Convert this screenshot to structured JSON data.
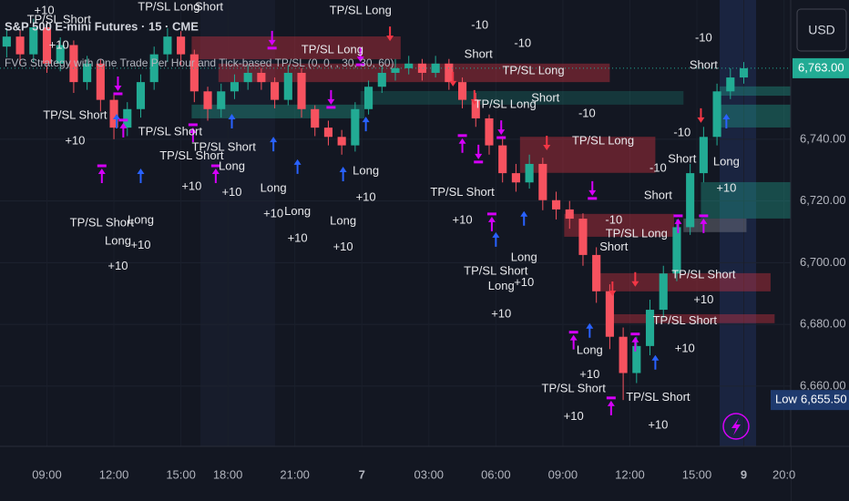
{
  "chart_data": {
    "type": "candlestick",
    "title": "S&P 500 E-mini Futures · 15 · CME",
    "subtitle": "FVG Strategy with One Trade Per Hour and Tick-based TP/SL (0, 0, , 30, 30, 60)",
    "currency": "USD",
    "xlim": [
      -0.5,
      58.5
    ],
    "ylim": [
      6640.5,
      6785.1
    ],
    "xticks": [
      {
        "value": 3,
        "label": "09:00"
      },
      {
        "value": 8,
        "label": "12:00"
      },
      {
        "value": 13,
        "label": "15:00"
      },
      {
        "value": 16.5,
        "label": "18:00"
      },
      {
        "value": 21.5,
        "label": "21:00"
      },
      {
        "value": 26.5,
        "label": "7"
      },
      {
        "value": 31.5,
        "label": "03:00"
      },
      {
        "value": 36.5,
        "label": "06:00"
      },
      {
        "value": 41.5,
        "label": "09:00"
      },
      {
        "value": 46.5,
        "label": "12:00"
      },
      {
        "value": 51.5,
        "label": "15:00"
      },
      {
        "value": 55,
        "label": "9"
      },
      {
        "value": 58,
        "label": "20:0"
      }
    ],
    "yticks": [
      {
        "value": 6660,
        "label": "6,660.00"
      },
      {
        "value": 6680,
        "label": "6,680.00"
      },
      {
        "value": 6700,
        "label": "6,700.00"
      },
      {
        "value": 6720,
        "label": "6,720.00"
      },
      {
        "value": 6740,
        "label": "6,740.00"
      }
    ],
    "up_color": "#22ab94",
    "down_color": "#f7525f",
    "x": [
      0,
      1,
      2,
      3,
      4,
      5,
      6,
      7,
      8,
      9,
      10,
      11,
      12,
      13,
      14,
      15,
      16,
      17,
      18,
      19,
      20,
      21,
      22,
      23,
      24,
      25,
      26,
      27,
      28,
      29,
      30,
      31,
      32,
      33,
      34,
      35,
      36,
      37,
      38,
      39,
      40,
      41,
      42,
      43,
      44,
      45,
      46,
      47,
      48,
      49,
      50,
      51,
      52,
      53,
      54,
      55
    ],
    "series": [
      {
        "open": [
          6770,
          6773.25,
          6767.5,
          6776.25,
          6764.5,
          6770.5,
          6758.5,
          6764.5,
          6752.75,
          6743.75,
          6749.75,
          6758.5,
          6767.5,
          6773.25,
          6767.5,
          6755.5,
          6749.75,
          6755.5,
          6758.5,
          6761.5,
          6758.5,
          6752.75,
          6761.5,
          6749.75,
          6743.75,
          6740.75,
          6738,
          6749.75,
          6757,
          6761.5,
          6763,
          6764.5,
          6761.5,
          6764.5,
          6758.5,
          6752.75,
          6746.75,
          6738,
          6729,
          6726,
          6732,
          6720.25,
          6717.25,
          6714.25,
          6702.5,
          6690.75,
          6676,
          6664.25,
          6673,
          6684.75,
          6696.5,
          6711.5,
          6729,
          6740.75,
          6755.5,
          6760
        ],
        "high": [
          6776,
          6775.5,
          6779,
          6778,
          6773,
          6772,
          6767,
          6766,
          6755,
          6752,
          6761,
          6770,
          6776,
          6775,
          6769,
          6757,
          6758,
          6761,
          6764,
          6763,
          6760,
          6764,
          6763,
          6751,
          6746,
          6743,
          6752,
          6759,
          6764,
          6766,
          6767,
          6766,
          6767,
          6766,
          6760,
          6755,
          6748,
          6741,
          6732,
          6735,
          6734,
          6723,
          6720,
          6716,
          6705,
          6693,
          6679,
          6676,
          6688,
          6699,
          6714,
          6732,
          6744,
          6758,
          6763,
          6765
        ],
        "low": [
          6766.5,
          6764,
          6765,
          6761.5,
          6762,
          6755,
          6756,
          6749,
          6740,
          6741,
          6747,
          6756,
          6765,
          6764,
          6752,
          6746,
          6747,
          6753,
          6756,
          6756,
          6750,
          6751,
          6747,
          6741,
          6738,
          6735,
          6736,
          6748,
          6755,
          6759,
          6761,
          6759,
          6760,
          6756,
          6750,
          6744,
          6735,
          6726,
          6723,
          6724,
          6717,
          6714,
          6711,
          6699,
          6687,
          6672,
          6655.5,
          6661,
          6670,
          6682,
          6694,
          6709,
          6726,
          6738,
          6753,
          6758
        ],
        "close": [
          6773.25,
          6767.5,
          6776.25,
          6764.5,
          6770.5,
          6758.5,
          6764.5,
          6752.75,
          6743.75,
          6749.75,
          6758.5,
          6767.5,
          6773.25,
          6767.5,
          6755.5,
          6749.75,
          6755.5,
          6758.5,
          6761.5,
          6758.5,
          6752.75,
          6761.5,
          6749.75,
          6743.75,
          6740.75,
          6738,
          6749.75,
          6757,
          6761.5,
          6763,
          6764.5,
          6761.5,
          6764.5,
          6758.5,
          6752.75,
          6746.75,
          6738,
          6729,
          6726,
          6732,
          6720.25,
          6717.25,
          6714.25,
          6702.5,
          6690.75,
          6676,
          6664.25,
          6673,
          6684.75,
          6696.5,
          6711.5,
          6729,
          6740.75,
          6755.5,
          6760,
          6763
        ]
      }
    ],
    "last": {
      "value": 6763,
      "label": "6,763.00",
      "color": "#22ab94"
    },
    "low": {
      "label": "Low",
      "value": 6655.5,
      "value_label": "6,655.50"
    },
    "zones": [
      {
        "x": [
          13.8,
          29.4
        ],
        "y": [
          6765.9,
          6773.3
        ],
        "color": "rgba(242,54,69,0.35)"
      },
      {
        "x": [
          15.8,
          45.0
        ],
        "y": [
          6758.5,
          6764.5
        ],
        "color": "rgba(242,54,69,0.35)"
      },
      {
        "x": [
          13.8,
          26.7
        ],
        "y": [
          6746.75,
          6751.2
        ],
        "color": "rgba(34,171,148,0.35)"
      },
      {
        "x": [
          26.4,
          50.5
        ],
        "y": [
          6751.2,
          6755.6
        ],
        "color": "rgba(34,171,148,0.22)"
      },
      {
        "x": [
          53.2,
          58.5
        ],
        "y": [
          6754.1,
          6757.1
        ],
        "color": "rgba(34,171,148,0.35)"
      },
      {
        "x": [
          53.2,
          58.5
        ],
        "y": [
          6743.8,
          6751.2
        ],
        "color": "rgba(34,171,148,0.35)"
      },
      {
        "x": [
          51.8,
          58.5
        ],
        "y": [
          6714.3,
          6726.1
        ],
        "color": "rgba(34,171,148,0.35)"
      },
      {
        "x": [
          38.3,
          48.4
        ],
        "y": [
          6729.1,
          6740.8
        ],
        "color": "rgba(242,54,69,0.35)"
      },
      {
        "x": [
          41.6,
          49.8
        ],
        "y": [
          6708.4,
          6715.8
        ],
        "color": "rgba(242,54,69,0.35)"
      },
      {
        "x": [
          43.7,
          57
        ],
        "y": [
          6690.7,
          6696.6
        ],
        "color": "rgba(242,54,69,0.35)"
      },
      {
        "x": [
          45.0,
          57.3
        ],
        "y": [
          6680.4,
          6683.3
        ],
        "color": "rgba(242,54,69,0.35)"
      },
      {
        "x": [
          50.5,
          55.2
        ],
        "y": [
          6709.9,
          6714.3
        ],
        "color": "rgba(120,123,134,0.45)"
      }
    ],
    "markers": [
      {
        "x": 8.2,
        "y": 6748.2,
        "color": "#2962ff",
        "arrow": "up"
      },
      {
        "x": 10,
        "y": 6730.5,
        "color": "#2962ff",
        "arrow": "up"
      },
      {
        "x": 16.8,
        "y": 6748.2,
        "color": "#2962ff",
        "arrow": "up"
      },
      {
        "x": 19.9,
        "y": 6740.8,
        "color": "#2962ff",
        "arrow": "up"
      },
      {
        "x": 21.7,
        "y": 6733.5,
        "color": "#2962ff",
        "arrow": "up"
      },
      {
        "x": 25.1,
        "y": 6731.1,
        "color": "#2962ff",
        "arrow": "up"
      },
      {
        "x": 26.8,
        "y": 6747.3,
        "color": "#2962ff",
        "arrow": "up"
      },
      {
        "x": 36.5,
        "y": 6709.9,
        "color": "#2962ff",
        "arrow": "up"
      },
      {
        "x": 38.6,
        "y": 6716.7,
        "color": "#2962ff",
        "arrow": "up"
      },
      {
        "x": 43.5,
        "y": 6680.4,
        "color": "#2962ff",
        "arrow": "up"
      },
      {
        "x": 48.4,
        "y": 6670.1,
        "color": "#2962ff",
        "arrow": "up"
      },
      {
        "x": 53.7,
        "y": 6748.2,
        "color": "#2962ff",
        "arrow": "up"
      },
      {
        "x": 28.6,
        "y": 6771.8,
        "color": "#f23645",
        "arrow": "down"
      },
      {
        "x": 33.3,
        "y": 6757.1,
        "color": "#f23645",
        "arrow": "down"
      },
      {
        "x": 34.9,
        "y": 6751.2,
        "color": "#f23645",
        "arrow": "down"
      },
      {
        "x": 40.3,
        "y": 6736.4,
        "color": "#f23645",
        "arrow": "down"
      },
      {
        "x": 45.2,
        "y": 6689.2,
        "color": "#f23645",
        "arrow": "down"
      },
      {
        "x": 46.9,
        "y": 6692.2,
        "color": "#f23645",
        "arrow": "down"
      },
      {
        "x": 51.8,
        "y": 6745.3,
        "color": "#f23645",
        "arrow": "down"
      },
      {
        "x": 7.1,
        "y": 6730.5,
        "color": "#d500f9",
        "arrow": "up"
      },
      {
        "x": 8.7,
        "y": 6745.3,
        "color": "#d500f9",
        "arrow": "up"
      },
      {
        "x": 13.9,
        "y": 6743.8,
        "color": "#d500f9",
        "arrow": "up"
      },
      {
        "x": 15.6,
        "y": 6730.5,
        "color": "#d500f9",
        "arrow": "up"
      },
      {
        "x": 34,
        "y": 6740.3,
        "color": "#d500f9",
        "arrow": "up"
      },
      {
        "x": 36.2,
        "y": 6714.9,
        "color": "#d500f9",
        "arrow": "up"
      },
      {
        "x": 42.3,
        "y": 6676.6,
        "color": "#d500f9",
        "arrow": "up"
      },
      {
        "x": 45.1,
        "y": 6655.3,
        "color": "#d500f9",
        "arrow": "up"
      },
      {
        "x": 46.9,
        "y": 6676,
        "color": "#d500f9",
        "arrow": "up"
      },
      {
        "x": 50.1,
        "y": 6714.3,
        "color": "#d500f9",
        "arrow": "up"
      },
      {
        "x": 52,
        "y": 6714.3,
        "color": "#d500f9",
        "arrow": "up"
      },
      {
        "x": 8.3,
        "y": 6755.6,
        "color": "#d500f9",
        "arrow": "down"
      },
      {
        "x": 19.8,
        "y": 6770.4,
        "color": "#d500f9",
        "arrow": "down"
      },
      {
        "x": 24.2,
        "y": 6751.2,
        "color": "#d500f9",
        "arrow": "down"
      },
      {
        "x": 26.4,
        "y": 6765,
        "color": "#d500f9",
        "arrow": "down"
      },
      {
        "x": 35.2,
        "y": 6733.5,
        "color": "#d500f9",
        "arrow": "down"
      },
      {
        "x": 36.9,
        "y": 6741.4,
        "color": "#d500f9",
        "arrow": "down"
      },
      {
        "x": 43.7,
        "y": 6721.7,
        "color": "#d500f9",
        "arrow": "down"
      }
    ],
    "annotations": [
      {
        "text": "+10",
        "x": 2.8,
        "y": 6781.5
      },
      {
        "text": "TP/SL Short",
        "x": 3.9,
        "y": 6778.6
      },
      {
        "text": "+10",
        "x": 3.9,
        "y": 6770.4
      },
      {
        "text": "TP/SL Long",
        "x": 12.1,
        "y": 6782.7
      },
      {
        "text": "Short",
        "x": 15.1,
        "y": 6782.7
      },
      {
        "text": "TP/SL Long",
        "x": 26.4,
        "y": 6781.5
      },
      {
        "text": "-10",
        "x": 35.3,
        "y": 6776.8
      },
      {
        "text": "Short",
        "x": 35.2,
        "y": 6767.4
      },
      {
        "text": "-10",
        "x": 38.5,
        "y": 6770.9
      },
      {
        "text": "TP/SL Long",
        "x": 24.3,
        "y": 6768.9
      },
      {
        "text": "TP/SL Long",
        "x": 39.3,
        "y": 6762.1
      },
      {
        "text": "Short",
        "x": 40.2,
        "y": 6753.2
      },
      {
        "text": "TP/SL Long",
        "x": 37.2,
        "y": 6751.2
      },
      {
        "text": "-10",
        "x": 43.3,
        "y": 6748.2
      },
      {
        "text": "TP/SL Long",
        "x": 44.5,
        "y": 6739.4
      },
      {
        "text": "-10",
        "x": 52,
        "y": 6772.7
      },
      {
        "text": "Short",
        "x": 52,
        "y": 6763.9
      },
      {
        "text": "TP/SL Short",
        "x": 5.1,
        "y": 6747.6
      },
      {
        "text": "+10",
        "x": 5.1,
        "y": 6739.4
      },
      {
        "text": "TP/SL Short",
        "x": 12.2,
        "y": 6742.3
      },
      {
        "text": "TP/SL Short",
        "x": 13.8,
        "y": 6734.4
      },
      {
        "text": "TP/SL Short",
        "x": 16.2,
        "y": 6737.3
      },
      {
        "text": "+10",
        "x": 13.8,
        "y": 6724.6
      },
      {
        "text": "+10",
        "x": 16.8,
        "y": 6722.6
      },
      {
        "text": "Long",
        "x": 16.8,
        "y": 6731.1
      },
      {
        "text": "Long",
        "x": 19.9,
        "y": 6724
      },
      {
        "text": "+10",
        "x": 19.9,
        "y": 6715.8
      },
      {
        "text": "Long",
        "x": 21.7,
        "y": 6716.4
      },
      {
        "text": "+10",
        "x": 21.7,
        "y": 6707.8
      },
      {
        "text": "Long",
        "x": 25.1,
        "y": 6713.4
      },
      {
        "text": "+10",
        "x": 25.1,
        "y": 6704.9
      },
      {
        "text": "Long",
        "x": 26.8,
        "y": 6729.6
      },
      {
        "text": "+10",
        "x": 26.8,
        "y": 6721.1
      },
      {
        "text": "TP/SL Short",
        "x": 7.1,
        "y": 6712.8
      },
      {
        "text": "Long",
        "x": 8.3,
        "y": 6706.9
      },
      {
        "text": "+10",
        "x": 8.3,
        "y": 6698.7
      },
      {
        "text": "Long",
        "x": 10,
        "y": 6713.7
      },
      {
        "text": "+10",
        "x": 10,
        "y": 6705.5
      },
      {
        "text": "TP/SL Short",
        "x": 34,
        "y": 6722.6
      },
      {
        "text": "+10",
        "x": 34,
        "y": 6713.7
      },
      {
        "text": "TP/SL Short",
        "x": 36.5,
        "y": 6697.2
      },
      {
        "text": "Long",
        "x": 38.6,
        "y": 6701.6
      },
      {
        "text": "+10",
        "x": 38.6,
        "y": 6693.4
      },
      {
        "text": "Long",
        "x": 36.9,
        "y": 6692.2
      },
      {
        "text": "+10",
        "x": 36.9,
        "y": 6683.3
      },
      {
        "text": "Short",
        "x": 48.6,
        "y": 6721.7
      },
      {
        "text": "-10",
        "x": 48.6,
        "y": 6730.5
      },
      {
        "text": "Short",
        "x": 50.4,
        "y": 6733.5
      },
      {
        "text": "-10",
        "x": 50.4,
        "y": 6742
      },
      {
        "text": "Long",
        "x": 53.7,
        "y": 6732.6
      },
      {
        "text": "+10",
        "x": 53.7,
        "y": 6724
      },
      {
        "text": "-10",
        "x": 45.3,
        "y": 6713.7
      },
      {
        "text": "Short",
        "x": 45.3,
        "y": 6704.9
      },
      {
        "text": "TP/SL Long",
        "x": 47,
        "y": 6709.3
      },
      {
        "text": "TP/SL Short",
        "x": 52,
        "y": 6696
      },
      {
        "text": "+10",
        "x": 52,
        "y": 6687.8
      },
      {
        "text": "TP/SL Short",
        "x": 50.6,
        "y": 6681
      },
      {
        "text": "+10",
        "x": 50.6,
        "y": 6672.1
      },
      {
        "text": "Long",
        "x": 43.5,
        "y": 6671.5
      },
      {
        "text": "+10",
        "x": 43.5,
        "y": 6663.6
      },
      {
        "text": "TP/SL Short",
        "x": 42.3,
        "y": 6659.1
      },
      {
        "text": "+10",
        "x": 42.3,
        "y": 6650
      },
      {
        "text": "TP/SL Short",
        "x": 48.6,
        "y": 6656.2
      },
      {
        "text": "+10",
        "x": 48.6,
        "y": 6647.3
      }
    ]
  }
}
